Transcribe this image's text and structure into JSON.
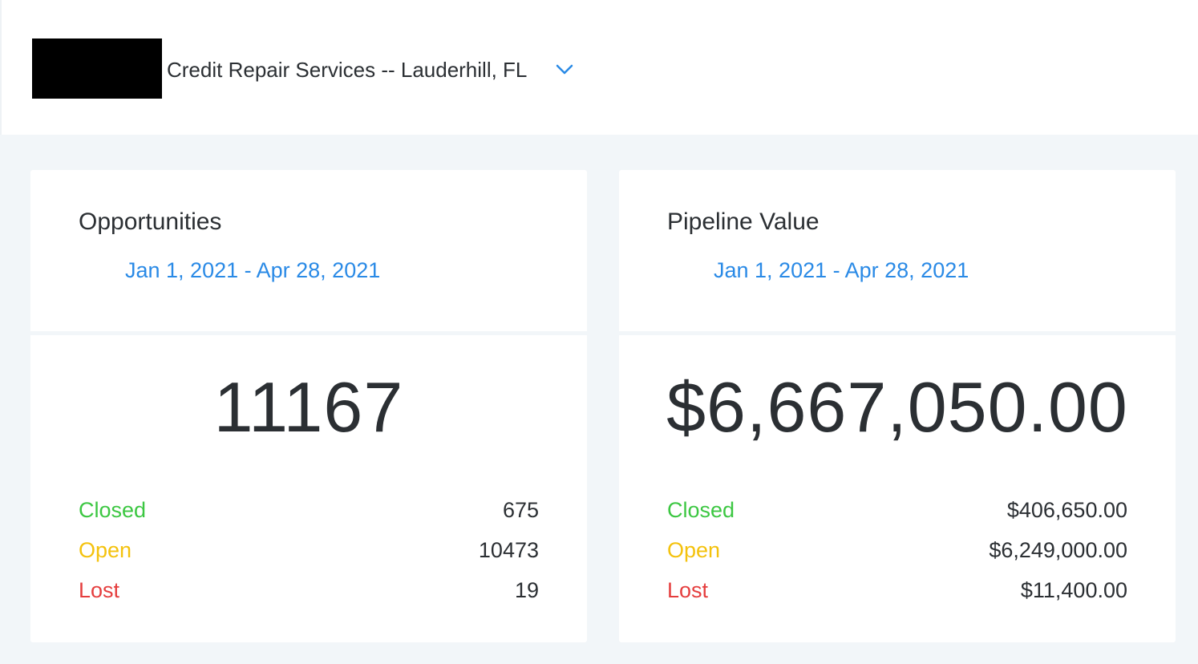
{
  "header": {
    "location": "Credit Repair Services -- Lauderhill, FL"
  },
  "colors": {
    "accent": "#2a8ae6",
    "closed": "#3cc742",
    "open": "#f4c20d",
    "lost": "#e53e3e"
  },
  "cards": [
    {
      "title": "Opportunities",
      "date_range": "Jan 1, 2021 - Apr 28, 2021",
      "total": "11167",
      "stats": [
        {
          "label": "Closed",
          "value": "675"
        },
        {
          "label": "Open",
          "value": "10473"
        },
        {
          "label": "Lost",
          "value": "19"
        }
      ]
    },
    {
      "title": "Pipeline Value",
      "date_range": "Jan 1, 2021 - Apr 28, 2021",
      "total": "$6,667,050.00",
      "stats": [
        {
          "label": "Closed",
          "value": "$406,650.00"
        },
        {
          "label": "Open",
          "value": "$6,249,000.00"
        },
        {
          "label": "Lost",
          "value": "$11,400.00"
        }
      ]
    }
  ]
}
